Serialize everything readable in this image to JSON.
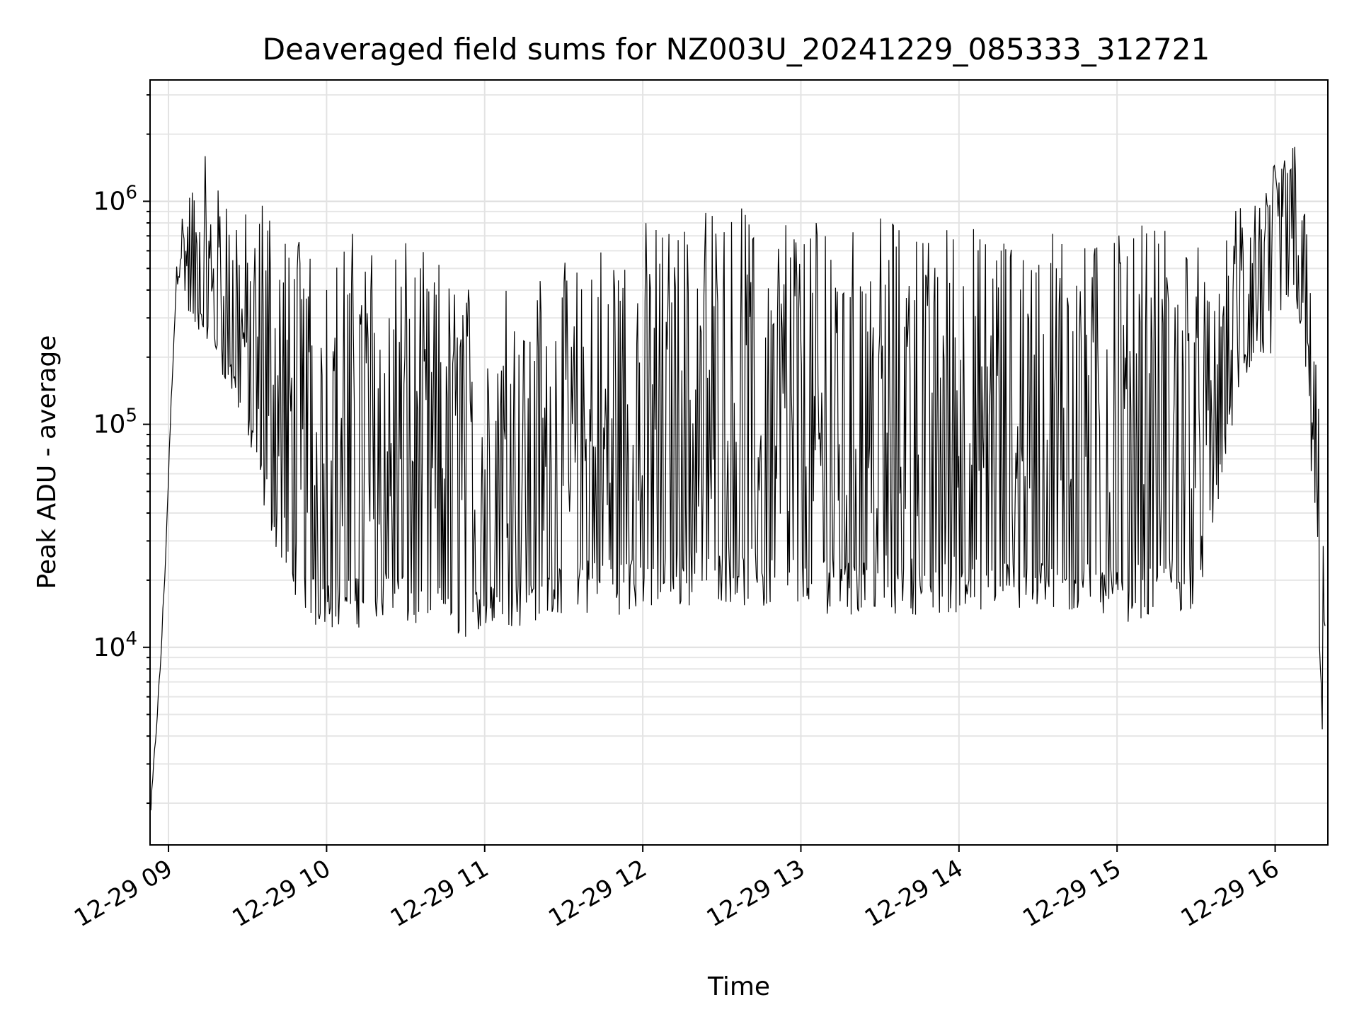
{
  "chart_data": {
    "type": "line",
    "title": "Deaveraged field sums for NZ003U_20241229_085333_312721",
    "xlabel": "Time",
    "ylabel": "Peak ADU - average",
    "yscale": "log",
    "grid": true,
    "grid_minor": true,
    "xlim": [
      "2024-12-29 08:53",
      "2024-12-29 16:20"
    ],
    "ylim": [
      1300,
      3500000
    ],
    "xticks": [
      {
        "t": "2024-12-29 09:00",
        "label": "12-29 09"
      },
      {
        "t": "2024-12-29 10:00",
        "label": "12-29 10"
      },
      {
        "t": "2024-12-29 11:00",
        "label": "12-29 11"
      },
      {
        "t": "2024-12-29 12:00",
        "label": "12-29 12"
      },
      {
        "t": "2024-12-29 13:00",
        "label": "12-29 13"
      },
      {
        "t": "2024-12-29 14:00",
        "label": "12-29 14"
      },
      {
        "t": "2024-12-29 15:00",
        "label": "12-29 15"
      },
      {
        "t": "2024-12-29 16:00",
        "label": "12-29 16"
      }
    ],
    "yticks": [
      {
        "value": 10000,
        "base": "10",
        "exp": "4"
      },
      {
        "value": 100000,
        "base": "10",
        "exp": "5"
      },
      {
        "value": 1000000,
        "base": "10",
        "exp": "6"
      }
    ],
    "series": [
      {
        "color": "#000000",
        "x": [
          "2024-12-29 08:53:20",
          "2024-12-29 08:55:00",
          "2024-12-29 08:57:00",
          "2024-12-29 08:59:00",
          "2024-12-29 09:01:00",
          "2024-12-29 09:03:00",
          "2024-12-29 09:05:00",
          "2024-12-29 09:07:00",
          "2024-12-29 09:10:00",
          "2024-12-29 09:14:00",
          "2024-12-29 09:18:00",
          "2024-12-29 09:22:00",
          "2024-12-29 09:26:00",
          "2024-12-29 09:30:00",
          "2024-12-29 09:34:00",
          "2024-12-29 09:38:00",
          "2024-12-29 09:42:00",
          "2024-12-29 09:46:00",
          "2024-12-29 09:50:00",
          "2024-12-29 09:55:00",
          "2024-12-29 10:00:00",
          "2024-12-29 10:10:00",
          "2024-12-29 10:20:00",
          "2024-12-29 10:30:00",
          "2024-12-29 10:40:00",
          "2024-12-29 10:50:00",
          "2024-12-29 11:00:00",
          "2024-12-29 11:10:00",
          "2024-12-29 11:20:00",
          "2024-12-29 11:30:00",
          "2024-12-29 11:40:00",
          "2024-12-29 11:50:00",
          "2024-12-29 12:00:00",
          "2024-12-29 12:10:00",
          "2024-12-29 12:20:00",
          "2024-12-29 12:30:00",
          "2024-12-29 12:40:00",
          "2024-12-29 12:50:00",
          "2024-12-29 13:00:00",
          "2024-12-29 13:10:00",
          "2024-12-29 13:20:00",
          "2024-12-29 13:30:00",
          "2024-12-29 13:40:00",
          "2024-12-29 13:50:00",
          "2024-12-29 14:00:00",
          "2024-12-29 14:10:00",
          "2024-12-29 14:20:00",
          "2024-12-29 14:30:00",
          "2024-12-29 14:40:00",
          "2024-12-29 14:50:00",
          "2024-12-29 15:00:00",
          "2024-12-29 15:10:00",
          "2024-12-29 15:20:00",
          "2024-12-29 15:30:00",
          "2024-12-29 15:36:00",
          "2024-12-29 15:42:00",
          "2024-12-29 15:48:00",
          "2024-12-29 15:54:00",
          "2024-12-29 16:00:00",
          "2024-12-29 16:04:00",
          "2024-12-29 16:08:00",
          "2024-12-29 16:11:00",
          "2024-12-29 16:14:00",
          "2024-12-29 16:17:00",
          "2024-12-29 16:19:00"
        ],
        "upper": [
          2000,
          4000,
          9000,
          30000,
          130000,
          500000,
          900000,
          1200000,
          1300000,
          1600000,
          1400000,
          1100000,
          1000000,
          900000,
          1000000,
          1000000,
          800000,
          800000,
          800000,
          700000,
          600000,
          750000,
          700000,
          650000,
          600000,
          500000,
          450000,
          450000,
          450000,
          550000,
          650000,
          800000,
          850000,
          900000,
          950000,
          950000,
          950000,
          900000,
          900000,
          900000,
          850000,
          850000,
          800000,
          800000,
          800000,
          800000,
          750000,
          750000,
          750000,
          750000,
          700000,
          800000,
          800000,
          700000,
          400000,
          700000,
          1200000,
          1400000,
          1600000,
          2300000,
          2200000,
          1000000,
          400000,
          100000,
          20000
        ],
        "lower": [
          1800,
          3500,
          8000,
          25000,
          120000,
          400000,
          500000,
          300000,
          250000,
          250000,
          200000,
          150000,
          120000,
          80000,
          50000,
          35000,
          25000,
          20000,
          15000,
          12000,
          12000,
          12000,
          13000,
          12000,
          12000,
          11000,
          11000,
          12000,
          13000,
          14000,
          14000,
          14000,
          14000,
          15000,
          15000,
          16000,
          15000,
          14000,
          14000,
          14000,
          14000,
          14000,
          14000,
          14000,
          14000,
          14000,
          14000,
          14000,
          14000,
          14000,
          13000,
          13000,
          14000,
          15000,
          30000,
          80000,
          150000,
          180000,
          200000,
          300000,
          350000,
          200000,
          40000,
          8000,
          1800
        ]
      }
    ]
  }
}
